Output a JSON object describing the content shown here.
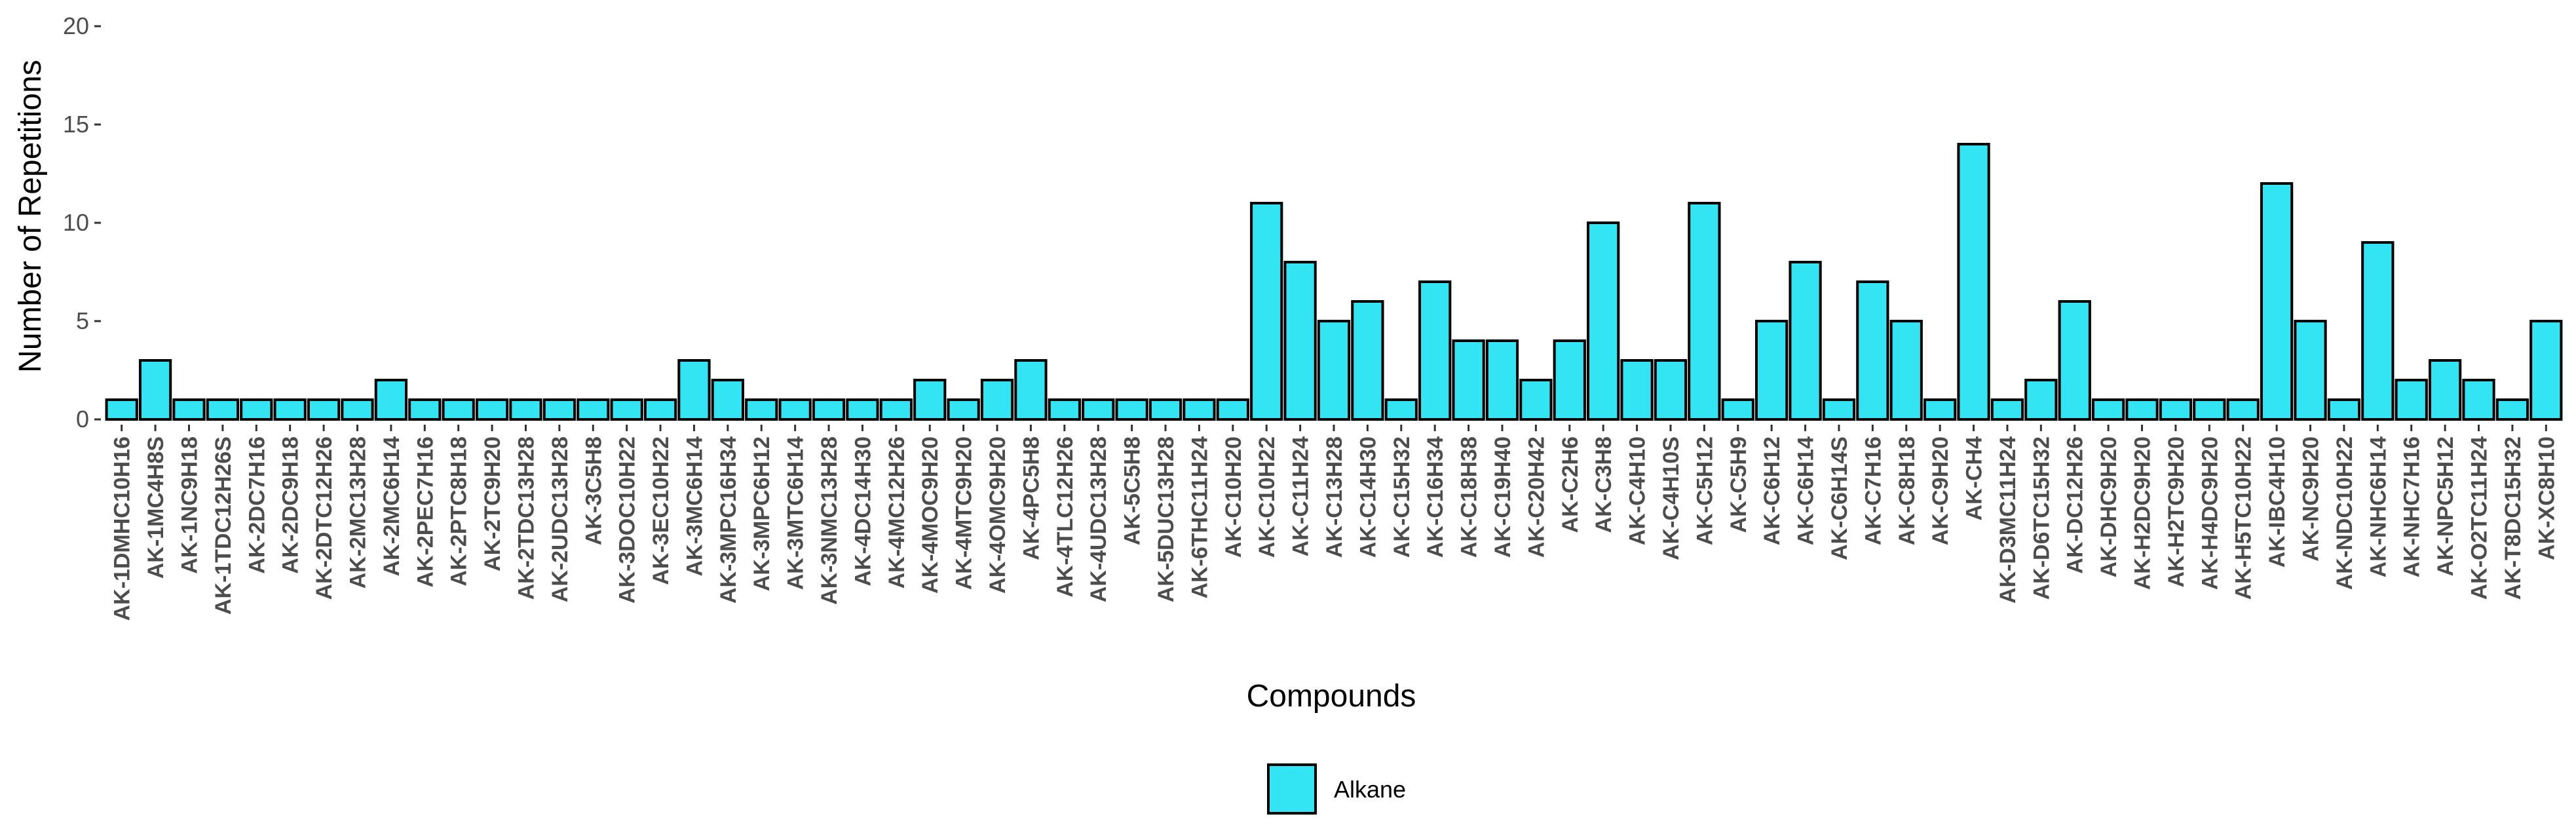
{
  "chart_data": {
    "type": "bar",
    "title": "",
    "xlabel": "Compounds",
    "ylabel": "Number of Repetitions",
    "ylim": [
      0,
      20
    ],
    "yticks": [
      0,
      5,
      10,
      15,
      20
    ],
    "grid": false,
    "legend": {
      "position": "bottom",
      "entries": [
        "Alkane"
      ]
    },
    "colors": {
      "bar_fill": "#33E4F2",
      "bar_stroke": "#000000",
      "axis_text": "#4d4d4d"
    },
    "categories": [
      "AK-1DMHC10H16",
      "AK-1MC4H8S",
      "AK-1NC9H18",
      "AK-1TDC12H26S",
      "AK-2DC7H16",
      "AK-2DC9H18",
      "AK-2DTC12H26",
      "AK-2MC13H28",
      "AK-2MC6H14",
      "AK-2PEC7H16",
      "AK-2PTC8H18",
      "AK-2TC9H20",
      "AK-2TDC13H28",
      "AK-2UDC13H28",
      "AK-3C5H8",
      "AK-3DOC10H22",
      "AK-3EC10H22",
      "AK-3MC6H14",
      "AK-3MPC16H34",
      "AK-3MPC6H12",
      "AK-3MTC6H14",
      "AK-3NMC13H28",
      "AK-4DC14H30",
      "AK-4MC12H26",
      "AK-4MOC9H20",
      "AK-4MTC9H20",
      "AK-4OMC9H20",
      "AK-4PC5H8",
      "AK-4TLC12H26",
      "AK-4UDC13H28",
      "AK-5C5H8",
      "AK-5DUC13H28",
      "AK-6THC11H24",
      "AK-C10H20",
      "AK-C10H22",
      "AK-C11H24",
      "AK-C13H28",
      "AK-C14H30",
      "AK-C15H32",
      "AK-C16H34",
      "AK-C18H38",
      "AK-C19H40",
      "AK-C20H42",
      "AK-C2H6",
      "AK-C3H8",
      "AK-C4H10",
      "AK-C4H10S",
      "AK-C5H12",
      "AK-C5H9",
      "AK-C6H12",
      "AK-C6H14",
      "AK-C6H14S",
      "AK-C7H16",
      "AK-C8H18",
      "AK-C9H20",
      "AK-CH4",
      "AK-D3MC11H24",
      "AK-D6TC15H32",
      "AK-DC12H26",
      "AK-DHC9H20",
      "AK-H2DC9H20",
      "AK-H2TC9H20",
      "AK-H4DC9H20",
      "AK-H5TC10H22",
      "AK-IBC4H10",
      "AK-NC9H20",
      "AK-NDC10H22",
      "AK-NHC6H14",
      "AK-NHC7H16",
      "AK-NPC5H12",
      "AK-O2TC11H24",
      "AK-T8DC15H32",
      "AK-XC8H10"
    ],
    "series": [
      {
        "name": "Alkane",
        "values": [
          1,
          3,
          1,
          1,
          1,
          1,
          1,
          1,
          2,
          1,
          1,
          1,
          1,
          1,
          1,
          1,
          1,
          3,
          2,
          1,
          1,
          1,
          1,
          1,
          2,
          1,
          2,
          3,
          1,
          1,
          1,
          1,
          1,
          1,
          11,
          8,
          5,
          6,
          1,
          7,
          4,
          4,
          2,
          4,
          10,
          3,
          3,
          11,
          1,
          5,
          8,
          1,
          7,
          5,
          1,
          14,
          1,
          2,
          6,
          1,
          1,
          1,
          1,
          1,
          12,
          5,
          1,
          9,
          2,
          3,
          2,
          1,
          5
        ]
      }
    ]
  }
}
